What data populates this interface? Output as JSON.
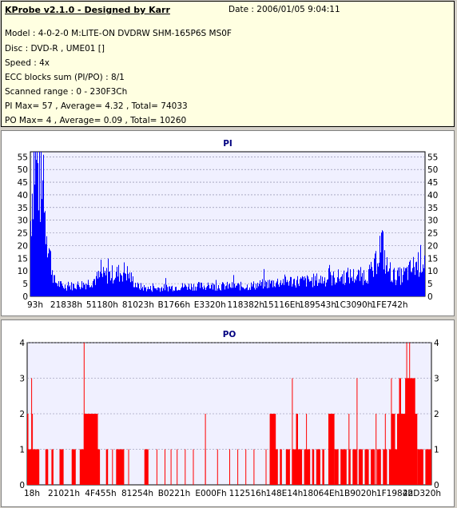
{
  "info": {
    "app_title": "KProbe v2.1.0 - Designed by Karr",
    "date": "Date : 2006/01/05 9:04:11",
    "lines": [
      "Model : 4-0-2-0 M:LITE-ON DVDRW SHM-165P6S MS0F",
      "Disc : DVD-R , UME01 []",
      "Speed : 4x",
      "ECC blocks sum (PI/PO) : 8/1",
      "Scanned range : 0 - 230F3Ch",
      "PI Max= 57 , Average= 4.32 , Total= 74033",
      "PO Max= 4 , Average= 0.09 , Total= 10260"
    ]
  },
  "colors": {
    "pi": "#0000ff",
    "po": "#ff0000",
    "plot_bg": "#f0f0ff",
    "grid": "#8080a0"
  },
  "chart_data": [
    {
      "type": "bar",
      "title": "PI",
      "ylim": [
        0,
        57
      ],
      "yticks": [
        0,
        5,
        10,
        15,
        20,
        25,
        30,
        35,
        40,
        45,
        50,
        55
      ],
      "xticks": [
        "93h",
        "21838h",
        "51180h",
        "81023h",
        "B1766h",
        "E3320h",
        "118382h",
        "15116Eh",
        "189543h",
        "1C3090h",
        "1FE742h"
      ],
      "grid": true,
      "profile": [
        [
          0.0,
          30
        ],
        [
          0.008,
          55
        ],
        [
          0.014,
          54
        ],
        [
          0.02,
          48
        ],
        [
          0.03,
          40
        ],
        [
          0.04,
          28
        ],
        [
          0.05,
          15
        ],
        [
          0.06,
          6
        ],
        [
          0.08,
          4
        ],
        [
          0.1,
          4
        ],
        [
          0.14,
          5
        ],
        [
          0.18,
          8
        ],
        [
          0.22,
          9
        ],
        [
          0.24,
          10
        ],
        [
          0.25,
          8
        ],
        [
          0.27,
          4
        ],
        [
          0.3,
          3
        ],
        [
          0.4,
          4
        ],
        [
          0.5,
          4
        ],
        [
          0.55,
          4
        ],
        [
          0.6,
          5
        ],
        [
          0.64,
          6
        ],
        [
          0.7,
          6
        ],
        [
          0.76,
          7
        ],
        [
          0.8,
          8
        ],
        [
          0.84,
          8
        ],
        [
          0.87,
          10
        ],
        [
          0.88,
          18
        ],
        [
          0.89,
          21
        ],
        [
          0.9,
          12
        ],
        [
          0.92,
          8
        ],
        [
          0.94,
          8
        ],
        [
          0.96,
          10
        ],
        [
          0.98,
          13
        ],
        [
          1.0,
          16
        ]
      ]
    },
    {
      "type": "bar",
      "title": "PO",
      "ylim": [
        0,
        4
      ],
      "yticks": [
        0,
        1,
        2,
        3,
        4
      ],
      "xticks": [
        "18h",
        "21021h",
        "4F455h",
        "81254h",
        "B0221h",
        "E000Fh",
        "112516h",
        "148E14h",
        "18064Eh",
        "1B9020h",
        "1F1984h",
        "22D320h"
      ],
      "grid": true,
      "ones": [
        [
          0.0,
          0.03
        ],
        [
          0.045,
          0.052
        ],
        [
          0.06,
          0.065
        ],
        [
          0.08,
          0.09
        ],
        [
          0.11,
          0.12
        ],
        [
          0.13,
          0.18
        ],
        [
          0.195,
          0.2
        ],
        [
          0.21,
          0.212
        ],
        [
          0.22,
          0.24
        ],
        [
          0.25,
          0.252
        ],
        [
          0.29,
          0.3
        ],
        [
          0.32,
          0.322
        ],
        [
          0.34,
          0.342
        ],
        [
          0.355,
          0.357
        ],
        [
          0.37,
          0.372
        ],
        [
          0.39,
          0.392
        ],
        [
          0.41,
          0.412
        ],
        [
          0.44,
          0.442
        ],
        [
          0.47,
          0.472
        ],
        [
          0.5,
          0.502
        ],
        [
          0.52,
          0.522
        ],
        [
          0.54,
          0.542
        ],
        [
          0.56,
          0.562
        ],
        [
          0.59,
          0.592
        ],
        [
          0.6,
          0.605
        ],
        [
          0.61,
          0.62
        ],
        [
          0.625,
          0.63
        ],
        [
          0.64,
          0.65
        ],
        [
          0.655,
          0.665
        ],
        [
          0.67,
          0.68
        ],
        [
          0.685,
          0.7
        ],
        [
          0.705,
          0.71
        ],
        [
          0.715,
          0.725
        ],
        [
          0.73,
          0.735
        ],
        [
          0.745,
          0.755
        ],
        [
          0.76,
          0.77
        ],
        [
          0.775,
          0.79
        ],
        [
          0.795,
          0.8
        ],
        [
          0.805,
          0.815
        ],
        [
          0.82,
          0.83
        ],
        [
          0.835,
          0.845
        ],
        [
          0.85,
          0.86
        ],
        [
          0.865,
          0.875
        ],
        [
          0.88,
          0.89
        ],
        [
          0.895,
          0.905
        ],
        [
          0.91,
          0.92
        ],
        [
          0.925,
          0.94
        ],
        [
          0.945,
          0.96
        ],
        [
          0.965,
          0.98
        ],
        [
          0.985,
          1.0
        ]
      ],
      "twos": [
        [
          0.0,
          0.003
        ],
        [
          0.012,
          0.014
        ],
        [
          0.14,
          0.175
        ],
        [
          0.44,
          0.441
        ],
        [
          0.6,
          0.615
        ],
        [
          0.665,
          0.67
        ],
        [
          0.69,
          0.692
        ],
        [
          0.745,
          0.76
        ],
        [
          0.795,
          0.797
        ],
        [
          0.862,
          0.864
        ],
        [
          0.885,
          0.887
        ],
        [
          0.9,
          0.91
        ],
        [
          0.915,
          0.945
        ],
        [
          0.955,
          0.965
        ]
      ],
      "threes": [
        [
          0.01,
          0.012
        ],
        [
          0.655,
          0.657
        ],
        [
          0.815,
          0.817
        ],
        [
          0.9,
          0.902
        ],
        [
          0.92,
          0.925
        ],
        [
          0.935,
          0.96
        ]
      ],
      "fours": [
        [
          0.14,
          0.142
        ],
        [
          0.938,
          0.94
        ],
        [
          0.945,
          0.947
        ]
      ]
    }
  ]
}
